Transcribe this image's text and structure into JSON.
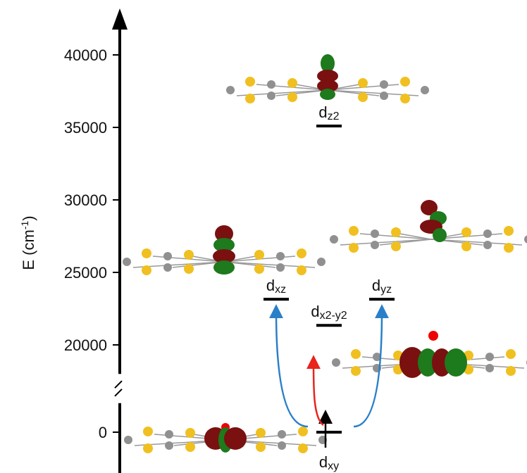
{
  "chart_data": {
    "type": "level",
    "ylabel": [
      "E (cm",
      "-1",
      ")"
    ],
    "yticks": [
      0,
      20000,
      25000,
      30000,
      35000,
      40000
    ],
    "axis_break": [
      2000,
      18000
    ],
    "ymax": 43000,
    "levels": [
      {
        "label": "d",
        "sub": "xy",
        "value": 0
      },
      {
        "label": "d",
        "sub": "x2-y2",
        "value": 21350
      },
      {
        "label": "d",
        "sub": "xz",
        "value": 23150
      },
      {
        "label": "d",
        "sub": "yz",
        "value": 23150
      },
      {
        "label": "d",
        "sub": "z2",
        "value": 35100
      }
    ],
    "transitions": [
      {
        "from": 0,
        "to": 2,
        "color": "#2a7fc9"
      },
      {
        "from": 0,
        "to": 1,
        "color": "#e8241c"
      },
      {
        "from": 0,
        "to": 3,
        "color": "#2a7fc9"
      }
    ]
  }
}
